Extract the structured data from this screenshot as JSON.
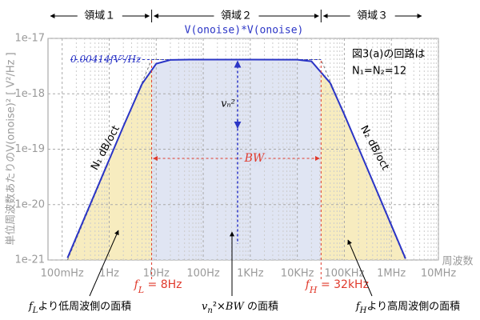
{
  "chart_data": {
    "type": "line",
    "title": "V(onoise)*V(onoise)",
    "ylabel": "単位周波数あたりのV(onoise)² [ V²/Hz ]",
    "xlabel": "周波数",
    "xlog": true,
    "ylog": true,
    "grid": true,
    "xlim": [
      0.05,
      10000000
    ],
    "ylim": [
      1e-21,
      1e-17
    ],
    "xticks": [
      {
        "value": 0.1,
        "label": "100mHz"
      },
      {
        "value": 1,
        "label": "1Hz"
      },
      {
        "value": 10,
        "label": "10Hz"
      },
      {
        "value": 100,
        "label": "100Hz"
      },
      {
        "value": 1000,
        "label": "1KHz"
      },
      {
        "value": 10000,
        "label": "10KHz"
      },
      {
        "value": 100000,
        "label": "100KHz"
      },
      {
        "value": 1000000,
        "label": "1MHz"
      },
      {
        "value": 10000000,
        "label": "10MHz"
      }
    ],
    "yticks": [
      1e-21,
      1e-20,
      1e-19,
      1e-18,
      1e-17
    ],
    "series": [
      {
        "name": "V(onoise)*V(onoise)",
        "color": "#2b35c6",
        "x": [
          0.13,
          0.2,
          0.5,
          1,
          2,
          5,
          10,
          20,
          50,
          100,
          1000,
          10000,
          20000,
          50000,
          100000,
          200000,
          500000,
          1000000,
          2000000
        ],
        "values": [
          1.09e-21,
          2.59e-21,
          1.62e-20,
          6.47e-20,
          2.58e-19,
          1.51e-18,
          3.49e-18,
          4.09e-18,
          4.14e-18,
          4.14e-18,
          4.14e-18,
          4.12e-18,
          3.86e-18,
          1.57e-18,
          4.22e-19,
          1.06e-19,
          1.7e-20,
          4.24e-21,
          1.06e-21
        ]
      }
    ],
    "plateau": {
      "value": 4.14e-18,
      "label": "0.00414fV²/Hz"
    },
    "fL": {
      "value": 8,
      "label": [
        {
          "text": "f"
        },
        {
          "text": "L",
          "sub": true
        },
        {
          "text": " = 8Hz"
        }
      ]
    },
    "fH": {
      "value": 32000,
      "label": [
        {
          "text": "f"
        },
        {
          "text": "H",
          "sub": true
        },
        {
          "text": " = 32kHz"
        }
      ]
    },
    "regions": [
      "領域１",
      "領域２",
      "領域３"
    ],
    "note": [
      "図3(a)の回路は",
      "N₁=N₂=12"
    ],
    "slope_labels": [
      "N₁ dB/oct",
      "N₂ dB/oct"
    ],
    "vn_label": "vₙ²",
    "bw_label": "BW",
    "captions": [
      [
        {
          "text": "f"
        },
        {
          "text": "L",
          "sub": true
        },
        {
          "text": "より低周波側の面積"
        }
      ],
      [
        {
          "text": "v"
        },
        {
          "text": "n",
          "sub": true
        },
        {
          "text": "²×"
        },
        {
          "text": "BW"
        },
        {
          "text": " の面積"
        }
      ],
      [
        {
          "text": "f"
        },
        {
          "text": "H",
          "sub": true
        },
        {
          "text": "より高周波側の面積"
        }
      ]
    ]
  }
}
